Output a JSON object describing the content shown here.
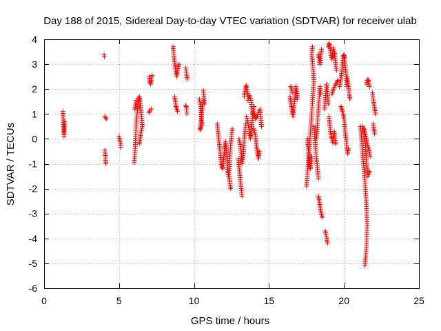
{
  "chart_data": {
    "type": "scatter",
    "title": "Day 188 of 2015, Sidereal Day-to-day VTEC variation (SDTVAR) for receiver ulab",
    "xlabel": "GPS time / hours",
    "ylabel": "SDTVAR / TECUs",
    "xlim": [
      0,
      25
    ],
    "ylim": [
      -6,
      4
    ],
    "x_ticks": [
      0,
      5,
      10,
      15,
      20,
      25
    ],
    "y_ticks": [
      -6,
      -5,
      -4,
      -3,
      -2,
      -1,
      0,
      1,
      2,
      3,
      4
    ],
    "grid": true,
    "marker": "+",
    "series": [
      {
        "name": "SDTVAR",
        "color": "#ff0000",
        "segments": [
          [
            1.25,
            1.1,
            1.27,
            0.8,
            1.3,
            0.5,
            1.32,
            0.3,
            1.33,
            0.1,
            1.35,
            0.4,
            1.37,
            0.7
          ],
          [
            4.0,
            3.38,
            4.02,
            3.3
          ],
          [
            4.05,
            0.9,
            4.1,
            0.85,
            4.15,
            0.8
          ],
          [
            4.05,
            -0.45,
            4.08,
            -0.6,
            4.1,
            -0.8,
            4.12,
            -1.0
          ],
          [
            5.0,
            0.1,
            5.05,
            -0.05,
            5.1,
            -0.2,
            5.12,
            -0.35
          ],
          [
            6.0,
            -0.95,
            6.05,
            -0.7,
            6.08,
            -0.3,
            6.1,
            0.1,
            6.15,
            0.6,
            6.2,
            1.0,
            6.25,
            1.3,
            6.3,
            1.6,
            6.35,
            1.7,
            6.4,
            1.5,
            6.45,
            1.2,
            6.5,
            0.9,
            6.55,
            0.5,
            6.45,
            0.2,
            6.4,
            0.0,
            6.35,
            -0.2
          ],
          [
            6.05,
            1.2,
            6.1,
            1.4,
            6.15,
            1.55
          ],
          [
            7.0,
            2.5,
            7.05,
            2.3,
            7.1,
            2.2,
            7.15,
            2.35,
            7.2,
            2.55
          ],
          [
            7.0,
            1.05,
            7.05,
            1.15,
            7.15,
            1.2
          ],
          [
            8.6,
            3.7,
            8.65,
            3.4,
            8.7,
            3.1,
            8.75,
            2.9,
            8.8,
            2.7,
            8.85,
            2.5,
            8.9,
            2.75,
            8.95,
            2.9,
            9.0,
            3.0
          ],
          [
            8.7,
            1.7,
            8.75,
            1.5,
            8.8,
            1.3,
            8.85,
            1.2,
            8.9,
            1.1
          ],
          [
            9.45,
            2.85,
            9.5,
            2.6,
            9.55,
            2.4
          ],
          [
            9.45,
            1.35,
            9.5,
            1.25,
            9.52,
            1.0
          ],
          [
            10.35,
            1.6,
            10.4,
            1.45,
            10.45,
            1.3,
            10.5,
            0.8,
            10.55,
            0.6,
            10.45,
            0.45,
            10.4,
            0.35,
            10.5,
            1.0,
            10.6,
            1.4,
            10.65,
            1.55,
            10.7,
            1.4,
            10.62,
            1.95
          ],
          [
            11.55,
            0.6,
            11.6,
            0.3,
            11.65,
            0.0,
            11.7,
            -0.3,
            11.75,
            -0.6,
            11.8,
            -0.9,
            11.85,
            -1.1,
            11.9,
            -1.2,
            11.95,
            -1.0,
            12.0,
            -0.6,
            12.05,
            -0.3,
            12.1,
            -0.1,
            12.15,
            -0.4,
            12.2,
            -0.8,
            12.25,
            -1.3,
            12.3,
            -1.5,
            12.35,
            -1.2,
            12.4,
            -0.6,
            12.45,
            -0.2,
            12.5,
            0.1,
            12.55,
            0.4
          ],
          [
            12.35,
            -1.5,
            12.4,
            -1.8,
            12.45,
            -2.0
          ],
          [
            12.95,
            -0.8,
            13.0,
            -1.1,
            13.05,
            -1.4,
            13.1,
            -1.7,
            13.15,
            -2.0,
            13.2,
            -2.3
          ],
          [
            13.0,
            0.0,
            13.1,
            -0.3,
            13.15,
            -0.7,
            13.2,
            -1.0,
            13.3,
            -0.5,
            13.35,
            0.0,
            13.4,
            0.3,
            13.45,
            0.6
          ],
          [
            13.35,
            1.7,
            13.4,
            1.9,
            13.45,
            2.1,
            13.5,
            2.15,
            13.55,
            1.9,
            13.6,
            1.7
          ],
          [
            13.5,
            0.9,
            13.6,
            0.6,
            13.7,
            0.3,
            13.75,
            0.0,
            13.8,
            0.2,
            13.85,
            0.5,
            13.9,
            0.9,
            13.95,
            1.1,
            14.0,
            1.3
          ],
          [
            13.6,
            1.55,
            13.7,
            1.75,
            13.8,
            1.55,
            13.85,
            1.3,
            13.9,
            1.0
          ],
          [
            14.0,
            0.4,
            14.1,
            0.1,
            14.15,
            -0.2,
            14.2,
            -0.4,
            14.25,
            -0.6,
            14.3,
            -0.8,
            14.35,
            -0.5
          ],
          [
            14.05,
            1.0,
            14.1,
            0.8,
            14.2,
            0.9,
            14.3,
            1.05,
            14.4,
            1.2,
            14.45,
            0.9,
            14.5,
            0.5
          ],
          [
            16.4,
            1.7,
            16.45,
            1.5,
            16.5,
            1.3,
            16.55,
            1.1,
            16.6,
            0.9,
            16.65,
            1.2,
            16.7,
            1.5,
            16.75,
            1.8,
            16.8,
            2.1,
            16.85,
            1.9,
            16.9,
            1.6
          ],
          [
            16.45,
            2.1,
            16.5,
            2.0,
            16.55,
            1.85
          ],
          [
            17.5,
            -1.9,
            17.55,
            -1.5,
            17.6,
            -1.1,
            17.65,
            -0.7,
            17.7,
            -0.3,
            17.75,
            0.2,
            17.8,
            0.6,
            17.85,
            1.0,
            17.9,
            1.5,
            17.95,
            2.0,
            18.0,
            2.3,
            17.95,
            2.7,
            17.9,
            3.1,
            17.85,
            3.4,
            17.9,
            3.7
          ],
          [
            17.55,
            0.0,
            17.6,
            -0.3,
            17.65,
            -0.6,
            17.7,
            -0.9,
            17.75,
            -1.2,
            17.8,
            -1.0,
            17.85,
            -0.7
          ],
          [
            18.0,
            0.5,
            18.05,
            0.1,
            18.1,
            -0.3,
            18.15,
            -0.7,
            18.2,
            -1.0,
            18.25,
            -1.3,
            18.3,
            -1.6
          ],
          [
            18.15,
            0.0,
            18.2,
            0.3,
            18.25,
            0.8,
            18.3,
            1.2,
            18.35,
            1.7,
            18.4,
            2.1,
            18.45,
            1.8
          ],
          [
            18.3,
            3.4,
            18.35,
            3.2,
            18.4,
            3.0,
            18.45,
            3.3,
            18.5,
            3.6
          ],
          [
            18.3,
            -2.3,
            18.35,
            -2.5,
            18.4,
            -2.7,
            18.45,
            -2.9,
            18.5,
            -3.05,
            18.55,
            -3.15
          ],
          [
            18.75,
            -3.7,
            18.8,
            -3.85,
            18.85,
            -4.0,
            18.9,
            -4.2
          ],
          [
            18.7,
            1.2,
            18.75,
            1.5,
            18.8,
            1.9,
            18.85,
            2.2,
            18.9,
            1.9,
            18.95,
            1.4
          ],
          [
            18.95,
            3.7,
            19.0,
            3.85,
            19.05,
            3.75,
            19.1,
            3.55,
            19.15,
            3.35,
            19.2,
            3.2,
            19.25,
            3.4,
            19.3,
            3.65,
            19.35,
            3.5,
            19.4,
            3.3,
            19.45,
            3.0,
            19.5,
            2.75
          ],
          [
            19.0,
            0.9,
            19.05,
            0.6,
            19.1,
            0.3,
            19.15,
            0.1,
            19.2,
            0.0,
            19.25,
            -0.15,
            19.3,
            0.0,
            19.35,
            0.3,
            19.4,
            0.0,
            19.45,
            -0.2
          ],
          [
            19.2,
            1.8,
            19.3,
            2.0,
            19.4,
            2.15,
            19.5,
            2.25,
            19.6,
            2.35
          ],
          [
            19.7,
            2.1,
            19.8,
            2.4,
            19.85,
            2.7,
            19.9,
            3.0,
            19.95,
            3.3,
            20.0,
            3.4,
            20.05,
            3.2,
            20.1,
            2.8,
            20.15,
            2.5,
            20.2,
            2.1
          ],
          [
            19.95,
            1.0,
            20.0,
            0.8,
            20.05,
            0.5,
            20.1,
            0.2,
            20.15,
            -0.1,
            20.2,
            -0.4,
            20.25,
            -0.6,
            20.3,
            -0.4
          ],
          [
            19.8,
            1.3,
            19.85,
            1.2,
            19.9,
            1.1
          ],
          [
            20.2,
            2.5,
            20.25,
            2.3,
            20.3,
            2.1,
            20.35,
            1.8,
            20.4,
            1.6
          ],
          [
            21.1,
            0.5,
            21.15,
            0.2,
            21.2,
            -0.2,
            21.25,
            -0.6,
            21.3,
            -1.0,
            21.35,
            -1.3,
            21.4,
            -1.7,
            21.45,
            -2.2,
            21.5,
            -2.8,
            21.55,
            -3.5,
            21.5,
            -4.2,
            21.45,
            -4.7,
            21.4,
            -5.1
          ],
          [
            21.35,
            0.4,
            21.4,
            0.0,
            21.45,
            -0.5,
            21.5,
            -0.9,
            21.55,
            -1.2,
            21.6,
            -1.5,
            21.7,
            -1.3
          ],
          [
            21.5,
            2.2,
            21.55,
            2.35,
            21.6,
            2.4,
            21.65,
            2.3,
            21.7,
            2.1
          ],
          [
            21.25,
            0.5,
            21.35,
            0.3,
            21.45,
            0.1,
            21.55,
            -0.2,
            21.65,
            -0.4,
            21.75,
            -0.7
          ],
          [
            21.9,
            1.85,
            21.95,
            1.6,
            22.0,
            1.4,
            22.05,
            1.2,
            22.1,
            1.0
          ],
          [
            21.95,
            0.6,
            22.0,
            0.4,
            22.05,
            0.2
          ]
        ]
      }
    ]
  }
}
